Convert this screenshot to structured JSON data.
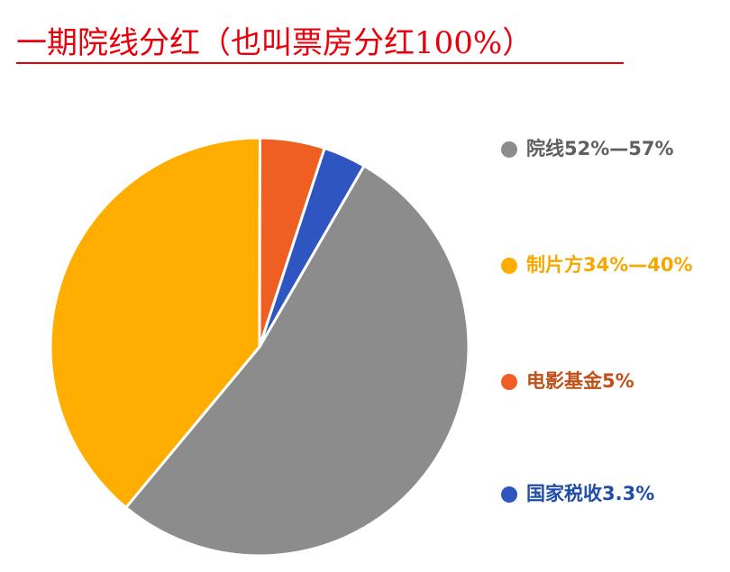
{
  "chart_data": {
    "type": "pie",
    "title": "一期院线分红（也叫票房分红100%）",
    "series": [
      {
        "name": "院线52%—57%",
        "color": "#8c8c8c",
        "label_color": "#5f5f5f",
        "values": [
          52.7
        ]
      },
      {
        "name": "制片方34%—40%",
        "color": "#ffae00",
        "label_color": "#f5a800",
        "values": [
          39
        ]
      },
      {
        "name": "电影基金5%",
        "color": "#f05f22",
        "label_color": "#c0501a",
        "values": [
          5
        ]
      },
      {
        "name": "国家税收3.3%",
        "color": "#2f55c0",
        "label_color": "#1f4ea8",
        "values": [
          3.3
        ]
      }
    ],
    "legend": "right"
  }
}
